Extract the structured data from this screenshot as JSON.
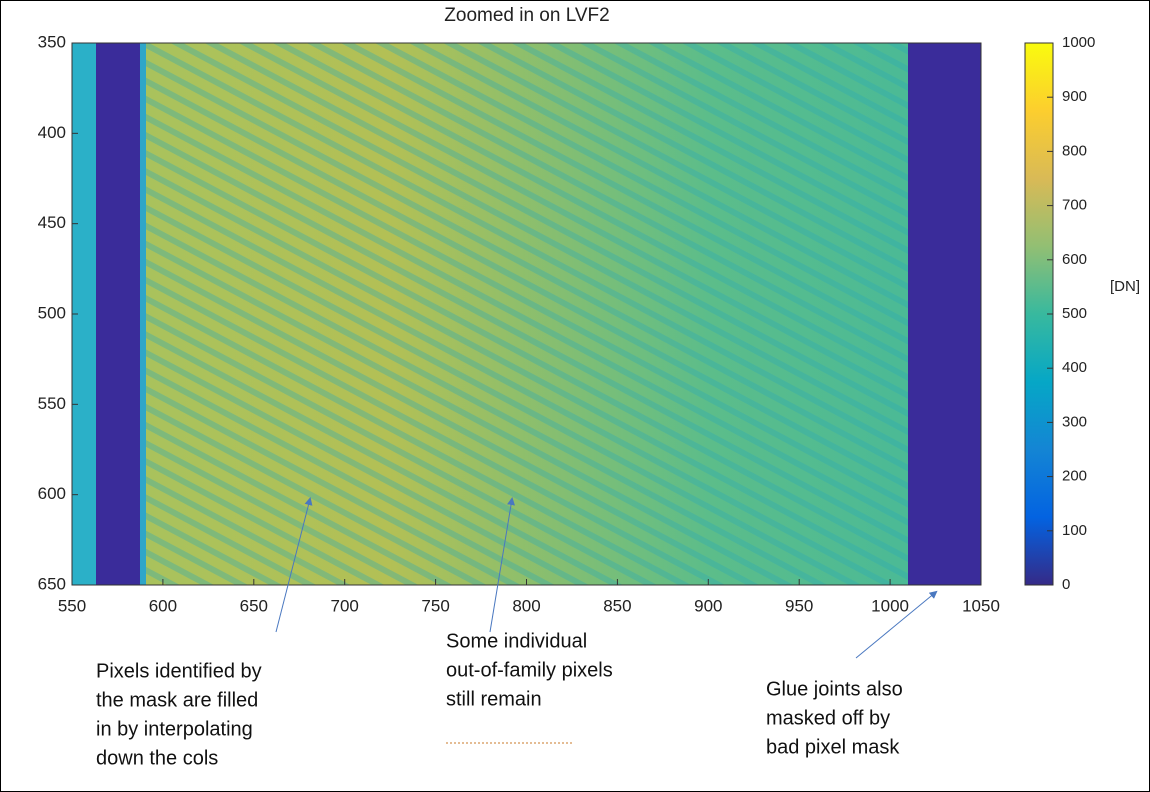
{
  "chart_data": {
    "type": "heatmap",
    "title": "Zoomed in on LVF2",
    "xlim": [
      550,
      1050
    ],
    "xticks": [
      550,
      600,
      650,
      700,
      750,
      800,
      850,
      900,
      950,
      1000,
      1050
    ],
    "ylim": [
      350,
      650
    ],
    "yticks": [
      350,
      400,
      450,
      500,
      550,
      600,
      650
    ],
    "y_reversed": true,
    "colormap": "parula",
    "clim": [
      0,
      1000
    ],
    "cticks": [
      0,
      100,
      200,
      300,
      400,
      500,
      600,
      700,
      800,
      900,
      1000
    ],
    "colorbar_label": "[DN]",
    "annotations": [
      {
        "lines": [
          "Pixels identified by",
          "the mask are filled",
          "in by interpolating",
          "down the cols"
        ]
      },
      {
        "lines": [
          "Some individual",
          "out-of-family pixels",
          "still remain"
        ]
      },
      {
        "lines": [
          "Glue joints also",
          "masked off by",
          "bad pixel mask"
        ]
      }
    ]
  }
}
